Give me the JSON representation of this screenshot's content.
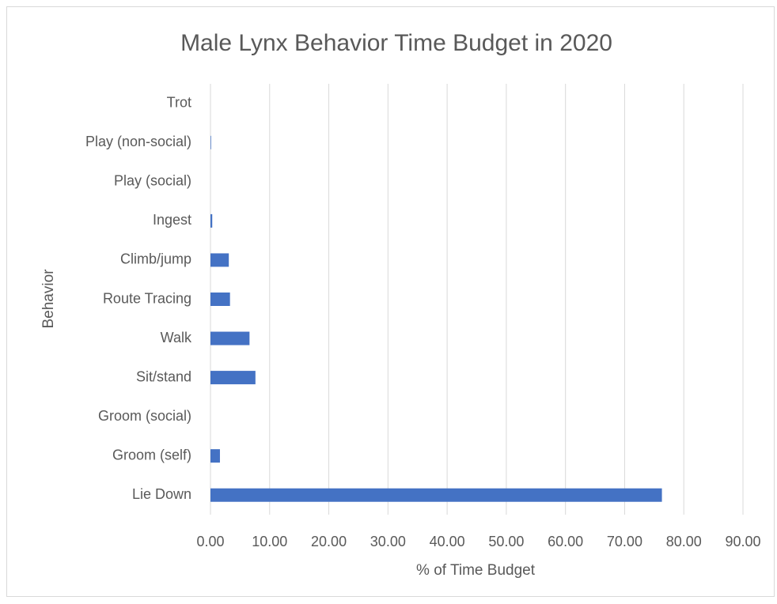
{
  "chart_data": {
    "type": "bar",
    "orientation": "horizontal",
    "title": "Male Lynx Behavior Time Budget in 2020",
    "x_label": "% of Time Budget",
    "y_label": "Behavior",
    "categories": [
      "Lie Down",
      "Groom (self)",
      "Groom (social)",
      "Sit/stand",
      "Walk",
      "Route Tracing",
      "Climb/jump",
      "Ingest",
      "Play (social)",
      "Play (non-social)",
      "Trot"
    ],
    "values": [
      76.3,
      1.6,
      0,
      7.6,
      6.6,
      3.3,
      3.1,
      0.3,
      0,
      0.1,
      0
    ],
    "color": "#4472c4",
    "xlim": [
      0,
      90
    ],
    "xticks": [
      {
        "value": 0,
        "label": "0.00"
      },
      {
        "value": 10,
        "label": "10.00"
      },
      {
        "value": 20,
        "label": "20.00"
      },
      {
        "value": 30,
        "label": "30.00"
      },
      {
        "value": 40,
        "label": "40.00"
      },
      {
        "value": 50,
        "label": "50.00"
      },
      {
        "value": 60,
        "label": "60.00"
      },
      {
        "value": 70,
        "label": "70.00"
      },
      {
        "value": 80,
        "label": "80.00"
      },
      {
        "value": 90,
        "label": "90.00"
      }
    ],
    "grid": true
  }
}
